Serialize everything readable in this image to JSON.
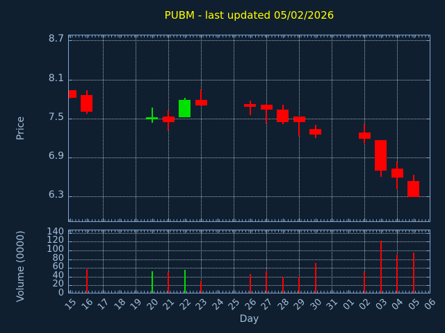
{
  "window": {
    "background_color": "#101f30",
    "axis_color": "#7fa6d0",
    "label_color": "#a3bfda",
    "title_color": "#ffff00",
    "grid_color": "rgba(222,230,236,0.7)"
  },
  "chart_data": [
    {
      "type": "candlestick",
      "title": "PUBM - last updated 05/02/2026",
      "xlabel": "Day",
      "ylabel": "Price",
      "up_color": "#00e100",
      "down_color": "#ff0000",
      "grid": true,
      "x_ticks": [
        "15",
        "16",
        "17",
        "18",
        "19",
        "20",
        "21",
        "22",
        "23",
        "24",
        "25",
        "26",
        "27",
        "28",
        "29",
        "30",
        "31",
        "01",
        "02",
        "03",
        "04",
        "05",
        "06"
      ],
      "grid_tick_indices": [
        2,
        4,
        6,
        8,
        10,
        12,
        14,
        16,
        18,
        20,
        22
      ],
      "y_ticks": [
        8.7,
        8.1,
        7.5,
        6.9,
        6.3
      ],
      "ylim": [
        5.89,
        8.78
      ],
      "candles": [
        {
          "i": 0,
          "day": "15",
          "open": 7.93,
          "high": 7.93,
          "low": 7.81,
          "close": 7.82,
          "direction": "down"
        },
        {
          "i": 1,
          "day": "16",
          "open": 7.86,
          "high": 7.93,
          "low": 7.57,
          "close": 7.6,
          "direction": "down"
        },
        {
          "i": 5,
          "day": "20",
          "open": 7.48,
          "high": 7.67,
          "low": 7.43,
          "close": 7.52,
          "direction": "up"
        },
        {
          "i": 6,
          "day": "21",
          "open": 7.53,
          "high": 7.62,
          "low": 7.31,
          "close": 7.44,
          "direction": "down"
        },
        {
          "i": 7,
          "day": "22",
          "open": 7.52,
          "high": 7.82,
          "low": 7.52,
          "close": 7.78,
          "direction": "up"
        },
        {
          "i": 8,
          "day": "23",
          "open": 7.78,
          "high": 7.94,
          "low": 7.7,
          "close": 7.7,
          "direction": "down"
        },
        {
          "i": 11,
          "day": "26",
          "open": 7.72,
          "high": 7.77,
          "low": 7.55,
          "close": 7.68,
          "direction": "down"
        },
        {
          "i": 12,
          "day": "27",
          "open": 7.71,
          "high": 7.72,
          "low": 7.42,
          "close": 7.63,
          "direction": "down"
        },
        {
          "i": 13,
          "day": "28",
          "open": 7.64,
          "high": 7.71,
          "low": 7.41,
          "close": 7.44,
          "direction": "down"
        },
        {
          "i": 14,
          "day": "29",
          "open": 7.53,
          "high": 7.53,
          "low": 7.23,
          "close": 7.44,
          "direction": "down"
        },
        {
          "i": 15,
          "day": "30",
          "open": 7.34,
          "high": 7.4,
          "low": 7.2,
          "close": 7.25,
          "direction": "down"
        },
        {
          "i": 18,
          "day": "02",
          "open": 7.28,
          "high": 7.41,
          "low": 7.11,
          "close": 7.18,
          "direction": "down"
        },
        {
          "i": 19,
          "day": "03",
          "open": 7.16,
          "high": 7.16,
          "low": 6.6,
          "close": 6.69,
          "direction": "down"
        },
        {
          "i": 20,
          "day": "04",
          "open": 6.73,
          "high": 6.83,
          "low": 6.4,
          "close": 6.59,
          "direction": "down"
        },
        {
          "i": 21,
          "day": "05",
          "open": 6.53,
          "high": 6.63,
          "low": 6.29,
          "close": 6.29,
          "direction": "down"
        }
      ]
    },
    {
      "type": "bar",
      "ylabel": "Volume (0000)",
      "y_ticks": [
        140,
        120,
        100,
        80,
        60,
        40,
        20,
        0
      ],
      "ylim": [
        0,
        146
      ],
      "grid": true,
      "bars": [
        {
          "i": 1,
          "day": "16",
          "value": 57,
          "direction": "down"
        },
        {
          "i": 5,
          "day": "20",
          "value": 52,
          "direction": "up"
        },
        {
          "i": 6,
          "day": "21",
          "value": 51,
          "direction": "down"
        },
        {
          "i": 7,
          "day": "22",
          "value": 56,
          "direction": "up"
        },
        {
          "i": 8,
          "day": "23",
          "value": 30,
          "direction": "down"
        },
        {
          "i": 11,
          "day": "26",
          "value": 46,
          "direction": "down"
        },
        {
          "i": 12,
          "day": "27",
          "value": 52,
          "direction": "down"
        },
        {
          "i": 13,
          "day": "28",
          "value": 40,
          "direction": "down"
        },
        {
          "i": 14,
          "day": "29",
          "value": 39,
          "direction": "down"
        },
        {
          "i": 15,
          "day": "30",
          "value": 71,
          "direction": "down"
        },
        {
          "i": 18,
          "day": "02",
          "value": 50,
          "direction": "down"
        },
        {
          "i": 19,
          "day": "03",
          "value": 122,
          "direction": "down"
        },
        {
          "i": 20,
          "day": "04",
          "value": 90,
          "direction": "down"
        },
        {
          "i": 21,
          "day": "05",
          "value": 95,
          "direction": "down"
        }
      ]
    }
  ]
}
